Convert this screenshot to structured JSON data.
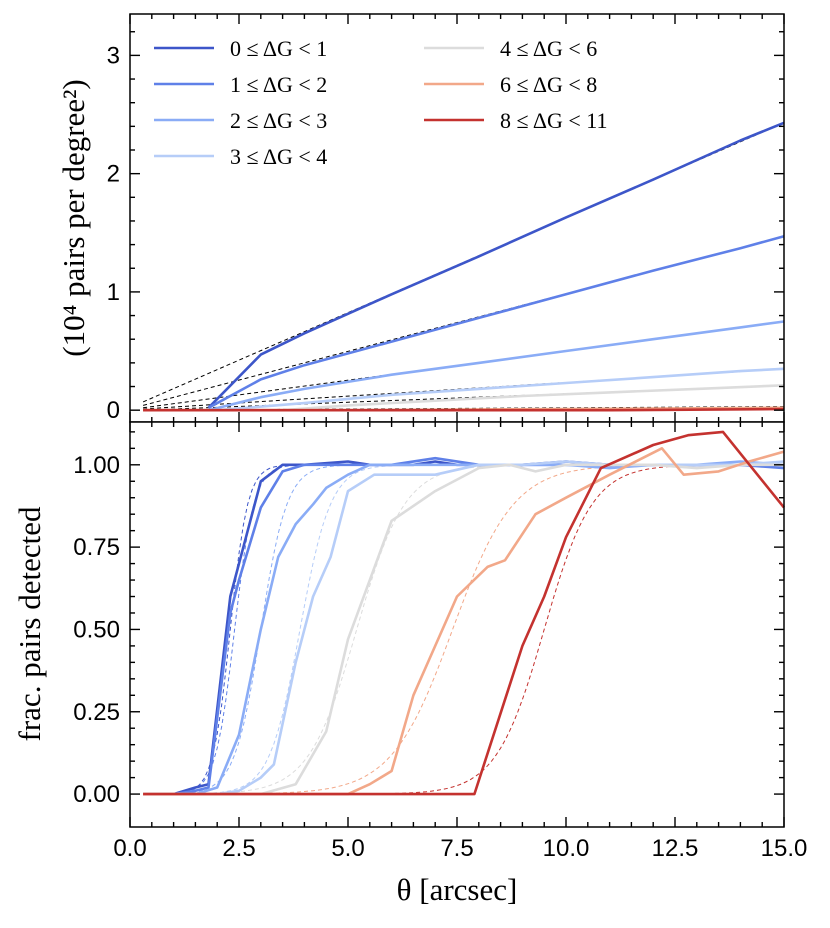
{
  "figure": {
    "xlabel": "θ [arcsec]",
    "xlim": [
      0.0,
      15.0
    ],
    "xticks": [
      "0.0",
      "2.5",
      "5.0",
      "7.5",
      "10.0",
      "12.5",
      "15.0"
    ],
    "colors": {
      "bin0": "#3d56c9",
      "bin1": "#5f80e8",
      "bin2": "#8aacf6",
      "bin3": "#b6cdf8",
      "bin4": "#dcdcdc",
      "bin5": "#f2a889",
      "bin6": "#c4322f",
      "fit": "#000000"
    },
    "legend": {
      "position": "top-left, two columns",
      "entries": [
        "0 ≤ ΔG < 1",
        "1 ≤ ΔG < 2",
        "2 ≤ ΔG < 3",
        "3 ≤ ΔG < 4",
        "4 ≤ ΔG < 6",
        "6 ≤ ΔG < 8",
        "8 ≤ ΔG < 11"
      ]
    }
  },
  "chart_data": [
    {
      "type": "line",
      "title": "",
      "ylabel": "(10⁴ pairs per degree²)",
      "xlabel": "",
      "xlim": [
        0,
        15
      ],
      "ylim": [
        -0.1,
        3.35
      ],
      "yticks": [
        "0",
        "1",
        "2",
        "3"
      ],
      "series": [
        {
          "name": "0 ≤ ΔG < 1",
          "x": [
            1.8,
            3.0,
            4.0,
            6.0,
            8.0,
            10.0,
            12.0,
            14.0,
            15.0
          ],
          "values": [
            0.02,
            0.47,
            0.65,
            0.98,
            1.3,
            1.63,
            1.95,
            2.28,
            2.43
          ]
        },
        {
          "name": "1 ≤ ΔG < 2",
          "x": [
            1.8,
            3.0,
            4.0,
            6.0,
            8.0,
            10.0,
            12.0,
            14.0,
            15.0
          ],
          "values": [
            0.02,
            0.26,
            0.38,
            0.58,
            0.78,
            0.98,
            1.18,
            1.37,
            1.47
          ]
        },
        {
          "name": "2 ≤ ΔG < 3",
          "x": [
            1.8,
            3.0,
            4.0,
            6.0,
            8.0,
            10.0,
            12.0,
            14.0,
            15.0
          ],
          "values": [
            0.0,
            0.11,
            0.18,
            0.3,
            0.4,
            0.5,
            0.6,
            0.7,
            0.75
          ]
        },
        {
          "name": "3 ≤ ΔG < 4",
          "x": [
            2.0,
            4.0,
            6.0,
            8.0,
            10.0,
            12.0,
            14.0,
            15.0
          ],
          "values": [
            0.0,
            0.06,
            0.13,
            0.18,
            0.23,
            0.28,
            0.33,
            0.35
          ]
        },
        {
          "name": "4 ≤ ΔG < 6",
          "x": [
            3.5,
            5.0,
            7.0,
            9.0,
            11.0,
            13.0,
            15.0
          ],
          "values": [
            0.0,
            0.04,
            0.08,
            0.12,
            0.15,
            0.18,
            0.21
          ]
        },
        {
          "name": "6 ≤ ΔG < 8",
          "x": [
            0.3,
            5.0,
            10.0,
            15.0
          ],
          "values": [
            0.0,
            0.0,
            0.01,
            0.02
          ]
        },
        {
          "name": "8 ≤ ΔG < 11",
          "x": [
            0.3,
            8.0,
            11.0,
            15.0
          ],
          "values": [
            0.0,
            0.0,
            0.0,
            0.01
          ]
        }
      ],
      "fits": [
        {
          "name": "fit 0 ≤ ΔG < 1",
          "x": [
            0.3,
            15.0
          ],
          "values": [
            0.07,
            2.43
          ]
        },
        {
          "name": "fit 1 ≤ ΔG < 2",
          "x": [
            0.3,
            15.0
          ],
          "values": [
            0.04,
            1.47
          ]
        },
        {
          "name": "fit 2 ≤ ΔG < 3",
          "x": [
            0.3,
            15.0
          ],
          "values": [
            0.02,
            0.75
          ]
        },
        {
          "name": "fit 3 ≤ ΔG < 4",
          "x": [
            0.3,
            15.0
          ],
          "values": [
            0.01,
            0.35
          ]
        },
        {
          "name": "fit 4 ≤ ΔG < 6",
          "x": [
            0.3,
            15.0
          ],
          "values": [
            0.0,
            0.21
          ]
        },
        {
          "name": "fit 6 ≤ ΔG < 8",
          "x": [
            0.3,
            15.0
          ],
          "values": [
            0.0,
            0.03
          ]
        },
        {
          "name": "fit 8 ≤ ΔG < 11",
          "x": [
            0.3,
            15.0
          ],
          "values": [
            0.0,
            0.015
          ]
        }
      ]
    },
    {
      "type": "line",
      "title": "",
      "ylabel": "frac. pairs detected",
      "xlabel": "θ [arcsec]",
      "xlim": [
        0,
        15
      ],
      "ylim": [
        -0.1,
        1.13
      ],
      "yticks": [
        "0.00",
        "0.25",
        "0.50",
        "0.75",
        "1.00"
      ],
      "series": [
        {
          "name": "0 ≤ ΔG < 1",
          "x": [
            0.3,
            1.0,
            1.5,
            1.8,
            2.3,
            2.5,
            3.0,
            3.5,
            4.0,
            5.0,
            5.5,
            6.0,
            6.5,
            7.0,
            7.5,
            8.0,
            9.0,
            10.0,
            11.0,
            12.0,
            13.0,
            14.0,
            15.0
          ],
          "values": [
            0.0,
            0.0,
            0.02,
            0.03,
            0.6,
            0.7,
            0.95,
            1.0,
            1.0,
            1.01,
            1.0,
            1.0,
            1.0,
            1.01,
            1.0,
            1.0,
            1.0,
            1.01,
            1.0,
            1.0,
            1.0,
            1.0,
            1.0
          ]
        },
        {
          "name": "1 ≤ ΔG < 2",
          "x": [
            0.3,
            1.0,
            1.5,
            1.8,
            2.3,
            2.5,
            3.0,
            3.5,
            4.0,
            4.5,
            5.0,
            6.0,
            7.0,
            8.0,
            9.0,
            10.0,
            11.0,
            12.0,
            13.0,
            14.0,
            15.0
          ],
          "values": [
            0.0,
            0.0,
            0.01,
            0.02,
            0.55,
            0.65,
            0.87,
            0.98,
            1.0,
            1.0,
            1.0,
            1.0,
            1.02,
            1.0,
            1.0,
            1.0,
            1.0,
            1.0,
            1.0,
            1.0,
            0.99
          ]
        },
        {
          "name": "2 ≤ ΔG < 3",
          "x": [
            0.3,
            1.5,
            2.0,
            2.5,
            3.0,
            3.4,
            3.8,
            4.2,
            4.5,
            5.0,
            5.5,
            6.0,
            7.0,
            8.0,
            9.0,
            10.0,
            11.0,
            12.0,
            13.0,
            14.0,
            15.0
          ],
          "values": [
            0.0,
            0.0,
            0.02,
            0.18,
            0.5,
            0.72,
            0.82,
            0.88,
            0.93,
            0.97,
            1.0,
            1.0,
            1.0,
            1.0,
            1.0,
            1.0,
            0.99,
            1.0,
            1.0,
            1.01,
            1.0
          ]
        },
        {
          "name": "3 ≤ ΔG < 4",
          "x": [
            0.3,
            2.0,
            2.5,
            3.0,
            3.3,
            3.8,
            4.2,
            4.6,
            5.0,
            5.6,
            6.0,
            7.0,
            8.0,
            9.0,
            10.0,
            11.0,
            12.0,
            13.0,
            14.0,
            15.0
          ],
          "values": [
            0.0,
            0.0,
            0.01,
            0.05,
            0.09,
            0.4,
            0.6,
            0.72,
            0.92,
            0.97,
            0.97,
            0.97,
            1.0,
            1.0,
            1.01,
            1.0,
            1.0,
            1.0,
            1.0,
            1.01
          ]
        },
        {
          "name": "4 ≤ ΔG < 6",
          "x": [
            0.3,
            3.0,
            3.8,
            4.5,
            5.0,
            6.0,
            7.0,
            8.0,
            8.7,
            9.3,
            10.0,
            11.0,
            12.0,
            13.0,
            14.0,
            15.0
          ],
          "values": [
            0.0,
            0.0,
            0.03,
            0.19,
            0.47,
            0.83,
            0.92,
            0.99,
            1.0,
            0.98,
            1.0,
            1.0,
            1.0,
            0.99,
            1.0,
            1.0
          ]
        },
        {
          "name": "6 ≤ ΔG < 8",
          "x": [
            0.3,
            5.0,
            5.5,
            6.0,
            6.5,
            7.0,
            7.5,
            8.2,
            8.6,
            9.3,
            10.0,
            11.0,
            12.2,
            12.7,
            13.5,
            14.2,
            15.0
          ],
          "values": [
            0.0,
            0.0,
            0.03,
            0.07,
            0.3,
            0.45,
            0.6,
            0.69,
            0.71,
            0.85,
            0.9,
            0.97,
            1.05,
            0.97,
            0.98,
            1.01,
            1.04
          ]
        },
        {
          "name": "8 ≤ ΔG < 11",
          "x": [
            0.3,
            7.9,
            9.0,
            9.5,
            10.0,
            10.8,
            12.0,
            12.8,
            13.6,
            15.0
          ],
          "values": [
            0.0,
            0.0,
            0.45,
            0.6,
            0.78,
            0.99,
            1.06,
            1.09,
            1.1,
            0.87
          ]
        }
      ],
      "fits": [
        {
          "name": "fit 0 ≤ ΔG < 1",
          "center": 2.3,
          "width": 0.2
        },
        {
          "name": "fit 1 ≤ ΔG < 2",
          "center": 2.4,
          "width": 0.22
        },
        {
          "name": "fit 2 ≤ ΔG < 3",
          "center": 3.0,
          "width": 0.3
        },
        {
          "name": "fit 3 ≤ ΔG < 4",
          "center": 3.9,
          "width": 0.35
        },
        {
          "name": "fit 4 ≤ ΔG < 6",
          "center": 5.2,
          "width": 0.55
        },
        {
          "name": "fit 6 ≤ ΔG < 8",
          "center": 7.4,
          "width": 0.7
        },
        {
          "name": "fit 8 ≤ ΔG < 11",
          "center": 9.5,
          "width": 0.55
        }
      ]
    }
  ]
}
